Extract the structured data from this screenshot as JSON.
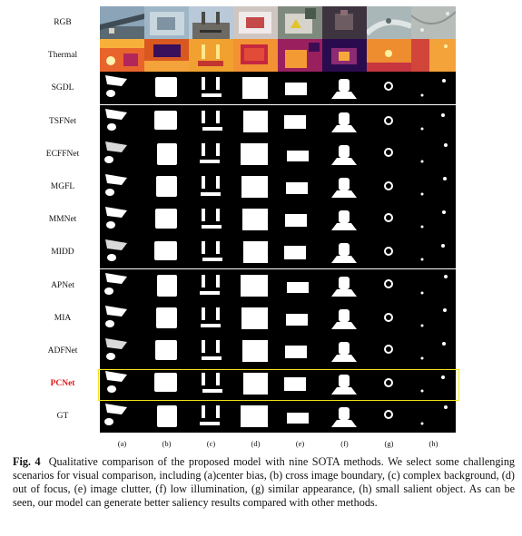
{
  "figure": {
    "rows": [
      {
        "label": "RGB",
        "kind": "rgb"
      },
      {
        "label": "Thermal",
        "kind": "thermal"
      },
      {
        "label": "SGDL",
        "kind": "mask"
      },
      {
        "label": "TSFNet",
        "kind": "mask"
      },
      {
        "label": "ECFFNet",
        "kind": "mask"
      },
      {
        "label": "MGFL",
        "kind": "mask"
      },
      {
        "label": "MMNet",
        "kind": "mask"
      },
      {
        "label": "MIDD",
        "kind": "mask"
      },
      {
        "label": "APNet",
        "kind": "mask"
      },
      {
        "label": "MIA",
        "kind": "mask"
      },
      {
        "label": "ADFNet",
        "kind": "mask"
      },
      {
        "label": "PCNet",
        "kind": "mask",
        "highlight": true
      },
      {
        "label": "GT",
        "kind": "mask"
      }
    ],
    "columns": [
      "(a)",
      "(b)",
      "(c)",
      "(d)",
      "(e)",
      "(f)",
      "(g)",
      "(h)"
    ],
    "highlight_color": "#f2e21a",
    "highlight_label_color": "#e01818"
  },
  "caption": {
    "label": "Fig. 4",
    "text": "Qualitative comparison of the proposed model with nine SOTA methods. We select some challenging scenarios for visual comparison, including (a)center bias, (b) cross image boundary, (c) complex background, (d) out of focus, (e) image clutter, (f) low illumination, (g) similar appearance, (h) small salient object. As can be seen, our model can generate better saliency results compared with other methods."
  }
}
